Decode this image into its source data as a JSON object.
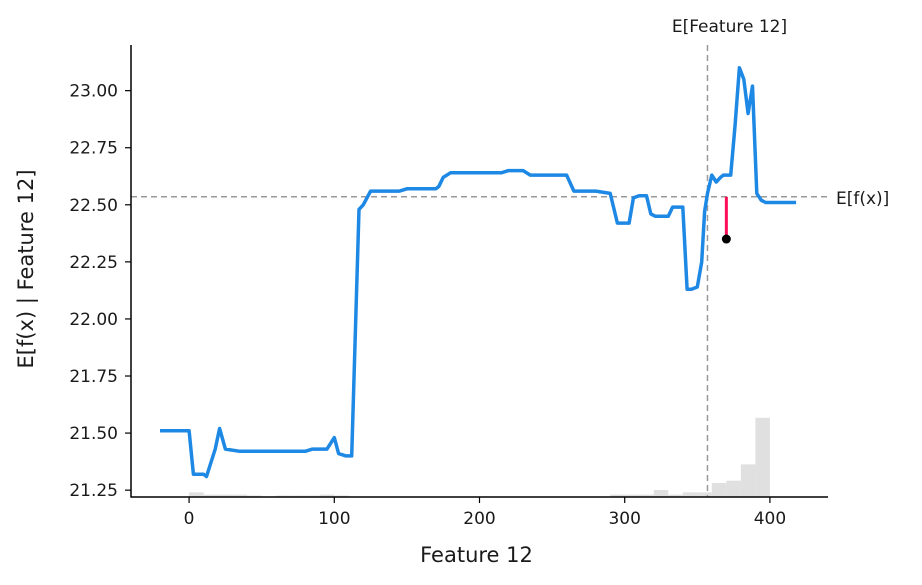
{
  "chart_data": {
    "type": "line",
    "xlabel": "Feature 12",
    "ylabel": "E[f(x) | Feature 12]",
    "xlim": [
      -40,
      440
    ],
    "ylim": [
      21.22,
      23.2
    ],
    "xticks": [
      0,
      100,
      200,
      300,
      400
    ],
    "yticks": [
      21.25,
      21.5,
      21.75,
      22.0,
      22.25,
      22.5,
      22.75,
      23.0
    ],
    "ytick_labels": [
      "21.25",
      "21.50",
      "21.75",
      "22.00",
      "22.25",
      "22.50",
      "22.75",
      "23.00"
    ],
    "grid": false,
    "colors": {
      "line": "#1e88e5",
      "reference": "#999999",
      "histogram": "#e0e0e0",
      "residual": "#ff0d57",
      "point": "#000000"
    },
    "series": [
      {
        "x": [
          -20,
          0,
          3,
          10,
          12,
          18,
          21,
          25,
          35,
          50,
          70,
          80,
          85,
          90,
          95,
          100,
          103,
          108,
          112,
          117,
          120,
          125,
          128,
          130,
          135,
          140,
          145,
          150,
          160,
          170,
          172,
          175,
          180,
          190,
          200,
          210,
          215,
          220,
          225,
          230,
          235,
          240,
          250,
          255,
          260,
          265,
          270,
          280,
          290,
          295,
          297,
          300,
          303,
          306,
          310,
          315,
          318,
          321,
          325,
          330,
          333,
          336,
          340,
          343,
          346,
          350,
          353,
          355,
          357,
          360,
          363,
          366,
          368,
          370,
          373,
          376,
          379,
          382,
          385,
          388,
          391,
          394,
          397,
          400,
          405,
          418
        ],
        "y": [
          21.51,
          21.51,
          21.32,
          21.32,
          21.31,
          21.43,
          21.52,
          21.43,
          21.42,
          21.42,
          21.42,
          21.42,
          21.43,
          21.43,
          21.43,
          21.48,
          21.41,
          21.4,
          21.4,
          22.48,
          22.5,
          22.56,
          22.56,
          22.56,
          22.56,
          22.56,
          22.56,
          22.57,
          22.57,
          22.57,
          22.58,
          22.62,
          22.64,
          22.64,
          22.64,
          22.64,
          22.64,
          22.65,
          22.65,
          22.65,
          22.63,
          22.63,
          22.63,
          22.63,
          22.63,
          22.56,
          22.56,
          22.56,
          22.55,
          22.42,
          22.42,
          22.42,
          22.42,
          22.53,
          22.54,
          22.54,
          22.46,
          22.45,
          22.45,
          22.45,
          22.49,
          22.49,
          22.49,
          22.13,
          22.13,
          22.14,
          22.25,
          22.47,
          22.55,
          22.63,
          22.6,
          22.62,
          22.63,
          22.63,
          22.63,
          22.85,
          23.1,
          23.05,
          22.9,
          23.02,
          22.55,
          22.52,
          22.51,
          22.51,
          22.51,
          22.51
        ]
      }
    ],
    "histogram": {
      "bin_edges": [
        -40,
        -30,
        -20,
        -10,
        0,
        10,
        20,
        30,
        40,
        50,
        60,
        70,
        80,
        90,
        100,
        110,
        120,
        130,
        140,
        150,
        160,
        170,
        180,
        190,
        200,
        210,
        220,
        230,
        240,
        250,
        260,
        270,
        280,
        290,
        300,
        310,
        320,
        330,
        340,
        350,
        360,
        370,
        380,
        390,
        400
      ],
      "counts": [
        0,
        0,
        0,
        0,
        0.02,
        0.01,
        0.01,
        0.01,
        0.005,
        0,
        0.005,
        0.005,
        0.005,
        0.01,
        0.005,
        0,
        0,
        0,
        0,
        0,
        0,
        0,
        0,
        0,
        0,
        0,
        0,
        0,
        0,
        0,
        0,
        0,
        0,
        0.01,
        0.01,
        0.01,
        0.03,
        0.01,
        0.02,
        0.02,
        0.06,
        0.07,
        0.14,
        0.34,
        0.96
      ]
    },
    "reference_lines": {
      "vertical": {
        "x": 357,
        "label": "E[Feature 12]"
      },
      "horizontal": {
        "y": 22.535,
        "label": "E[f(x)]"
      }
    },
    "highlight_point": {
      "x": 370,
      "y": 22.35,
      "from_y": 22.535
    }
  }
}
